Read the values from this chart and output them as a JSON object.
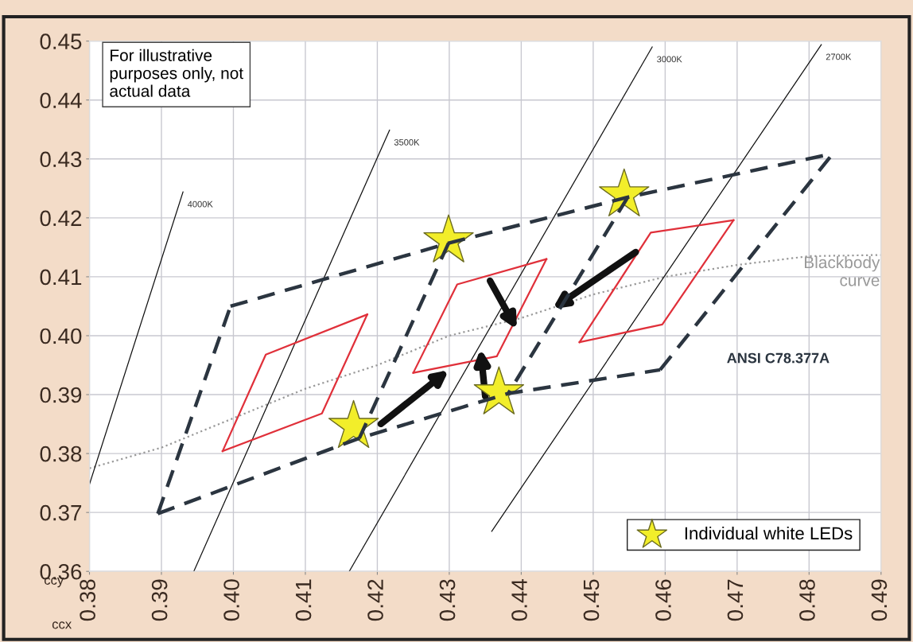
{
  "chart_data": {
    "type": "scatter",
    "xlabel": "ccx",
    "ylabel": "ccy",
    "xlim": [
      0.38,
      0.49
    ],
    "ylim": [
      0.36,
      0.45
    ],
    "xticks": [
      0.38,
      0.39,
      {
        "value": 0.4,
        "label": "0.40"
      },
      0.41,
      0.42,
      0.43,
      0.44,
      0.45,
      0.46,
      0.47,
      0.48,
      0.49
    ],
    "yticks": [
      0.36,
      0.37,
      0.38,
      0.39,
      {
        "value": 0.4,
        "label": "0.40"
      },
      0.41,
      0.42,
      0.43,
      0.44,
      0.45
    ],
    "grid": true,
    "legend": "bottom right",
    "series": [
      {
        "type": "line",
        "name": "Blackbody\ncurve",
        "color": "#999999",
        "line_style": "dotted",
        "x": [
          0.38,
          0.39,
          0.4,
          0.41,
          0.42,
          0.43,
          0.44,
          0.45,
          0.46,
          0.47,
          0.48,
          0.49
        ],
        "values": [
          0.3775,
          0.381,
          0.386,
          0.391,
          0.395,
          0.4,
          0.403,
          0.407,
          0.41,
          0.412,
          0.4135,
          0.4137
        ]
      },
      {
        "type": "line",
        "name": "4000K",
        "color": "#111111",
        "line_style": "solid",
        "x": [
          0.38,
          0.393
        ],
        "values": [
          0.3748,
          0.4244
        ]
      },
      {
        "type": "line",
        "name": "3500K",
        "color": "#111111",
        "line_style": "solid",
        "x": [
          0.3945,
          0.4217
        ],
        "values": [
          0.36,
          0.4349
        ]
      },
      {
        "type": "line",
        "name": "3000K",
        "color": "#111111",
        "line_style": "solid",
        "x": [
          0.4161,
          0.4582
        ],
        "values": [
          0.36,
          0.449
        ]
      },
      {
        "type": "line",
        "name": "2700K",
        "color": "#111111",
        "line_style": "solid",
        "x": [
          0.4359,
          0.4817
        ],
        "values": [
          0.3668,
          0.4494
        ]
      },
      {
        "type": "line",
        "color": "#2b3540",
        "line_style": "dashed",
        "x": [
          0.3996,
          0.4299,
          0.4548,
          0.4833
        ],
        "values": [
          0.405,
          0.4157,
          0.4235,
          0.4309
        ]
      },
      {
        "type": "line",
        "color": "#2b3540",
        "line_style": "dashed",
        "x": [
          0.3895,
          0.4175,
          0.4382,
          0.4593
        ],
        "values": [
          0.3698,
          0.3826,
          0.3902,
          0.3942
        ]
      },
      {
        "type": "line",
        "color": "#2b3540",
        "line_style": "dashed",
        "x": [
          0.3895,
          0.3996
        ],
        "values": [
          0.3698,
          0.405
        ]
      },
      {
        "type": "line",
        "color": "#2b3540",
        "line_style": "dashed",
        "x": [
          0.4299,
          0.4175
        ],
        "values": [
          0.4157,
          0.3826
        ]
      },
      {
        "type": "line",
        "color": "#2b3540",
        "line_style": "dashed",
        "x": [
          0.4548,
          0.4382
        ],
        "values": [
          0.4235,
          0.3902
        ]
      },
      {
        "type": "line",
        "color": "#2b3540",
        "line_style": "dashed",
        "x": [
          0.4593,
          0.4833
        ],
        "values": [
          0.3942,
          0.4309
        ]
      },
      {
        "type": "line",
        "color": "#e0303a",
        "line_style": "solid",
        "x": [
          0.3985,
          0.4045,
          0.4186
        ],
        "values": [
          0.3804,
          0.3968,
          0.4036
        ]
      },
      {
        "type": "line",
        "color": "#e0303a",
        "line_style": "solid",
        "x": [
          0.3985,
          0.4123,
          0.4186
        ],
        "values": [
          0.3804,
          0.3868,
          0.4036
        ]
      },
      {
        "type": "line",
        "color": "#e0303a",
        "line_style": "solid",
        "x": [
          0.425,
          0.4311,
          0.4435
        ],
        "values": [
          0.3937,
          0.4087,
          0.413
        ]
      },
      {
        "type": "line",
        "color": "#e0303a",
        "line_style": "solid",
        "x": [
          0.425,
          0.4366,
          0.4435
        ],
        "values": [
          0.3937,
          0.3965,
          0.413
        ]
      },
      {
        "type": "line",
        "color": "#e0303a",
        "line_style": "solid",
        "x": [
          0.4481,
          0.458,
          0.4695
        ],
        "values": [
          0.3989,
          0.4175,
          0.4196
        ]
      },
      {
        "type": "line",
        "color": "#e0303a",
        "line_style": "solid",
        "x": [
          0.4481,
          0.4596,
          0.4695
        ],
        "values": [
          0.3989,
          0.4019,
          0.4196
        ]
      },
      {
        "name": "Individual white LEDs",
        "color": "#f2ee2a",
        "marker": "star",
        "x": [
          0.4299,
          0.4543,
          0.4167,
          0.4369
        ],
        "values": [
          0.4161,
          0.4239,
          0.3846,
          0.3903
        ]
      }
    ],
    "annotations": [
      "For illustrative\npurposes only, not\nactual data",
      "ANSI C78.377A"
    ]
  }
}
